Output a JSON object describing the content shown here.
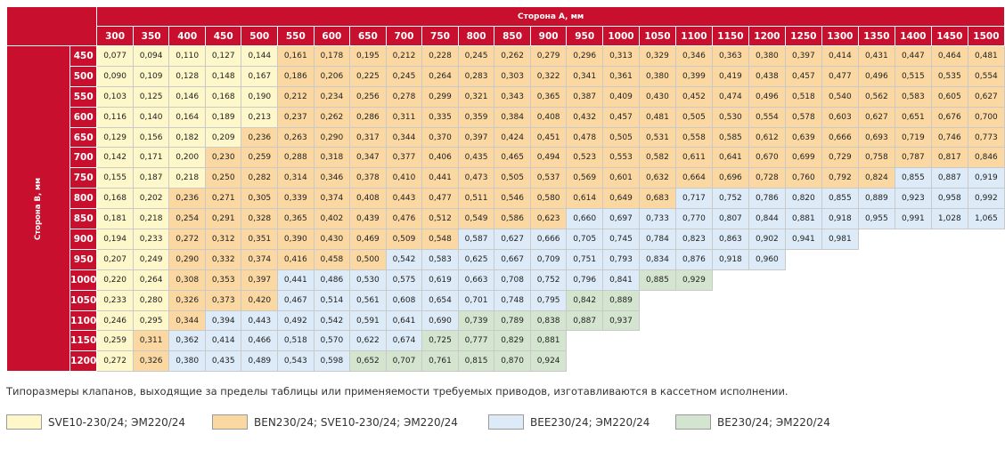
{
  "title_a": "Сторона А, мм",
  "title_b": "Сторона В, мм",
  "columns": [
    "300",
    "350",
    "400",
    "450",
    "500",
    "550",
    "600",
    "650",
    "700",
    "750",
    "800",
    "850",
    "900",
    "950",
    "1000",
    "1050",
    "1100",
    "1150",
    "1200",
    "1250",
    "1300",
    "1350",
    "1400",
    "1450",
    "1500"
  ],
  "rows": [
    {
      "label": "450",
      "values": [
        "0,077",
        "0,094",
        "0,110",
        "0,127",
        "0,144",
        "0,161",
        "0,178",
        "0,195",
        "0,212",
        "0,228",
        "0,245",
        "0,262",
        "0,279",
        "0,296",
        "0,313",
        "0,329",
        "0,346",
        "0,363",
        "0,380",
        "0,397",
        "0,414",
        "0,431",
        "0,447",
        "0,464",
        "0,481"
      ],
      "cls": "1111122222222222222222222"
    },
    {
      "label": "500",
      "values": [
        "0,090",
        "0,109",
        "0,128",
        "0,148",
        "0,167",
        "0,186",
        "0,206",
        "0,225",
        "0,245",
        "0,264",
        "0,283",
        "0,303",
        "0,322",
        "0,341",
        "0,361",
        "0,380",
        "0,399",
        "0,419",
        "0,438",
        "0,457",
        "0,477",
        "0,496",
        "0,515",
        "0,535",
        "0,554"
      ],
      "cls": "1111122222222222222222222"
    },
    {
      "label": "550",
      "values": [
        "0,103",
        "0,125",
        "0,146",
        "0,168",
        "0,190",
        "0,212",
        "0,234",
        "0,256",
        "0,278",
        "0,299",
        "0,321",
        "0,343",
        "0,365",
        "0,387",
        "0,409",
        "0,430",
        "0,452",
        "0,474",
        "0,496",
        "0,518",
        "0,540",
        "0,562",
        "0,583",
        "0,605",
        "0,627"
      ],
      "cls": "1111122222222222222222222"
    },
    {
      "label": "600",
      "values": [
        "0,116",
        "0,140",
        "0,164",
        "0,189",
        "0,213",
        "0,237",
        "0,262",
        "0,286",
        "0,311",
        "0,335",
        "0,359",
        "0,384",
        "0,408",
        "0,432",
        "0,457",
        "0,481",
        "0,505",
        "0,530",
        "0,554",
        "0,578",
        "0,603",
        "0,627",
        "0,651",
        "0,676",
        "0,700"
      ],
      "cls": "1111122222222222222222222"
    },
    {
      "label": "650",
      "values": [
        "0,129",
        "0,156",
        "0,182",
        "0,209",
        "0,236",
        "0,263",
        "0,290",
        "0,317",
        "0,344",
        "0,370",
        "0,397",
        "0,424",
        "0,451",
        "0,478",
        "0,505",
        "0,531",
        "0,558",
        "0,585",
        "0,612",
        "0,639",
        "0,666",
        "0,693",
        "0,719",
        "0,746",
        "0,773"
      ],
      "cls": "1111222222222222222222222"
    },
    {
      "label": "700",
      "values": [
        "0,142",
        "0,171",
        "0,200",
        "0,230",
        "0,259",
        "0,288",
        "0,318",
        "0,347",
        "0,377",
        "0,406",
        "0,435",
        "0,465",
        "0,494",
        "0,523",
        "0,553",
        "0,582",
        "0,611",
        "0,641",
        "0,670",
        "0,699",
        "0,729",
        "0,758",
        "0,787",
        "0,817",
        "0,846"
      ],
      "cls": "1112222222222222222222222"
    },
    {
      "label": "750",
      "values": [
        "0,155",
        "0,187",
        "0,218",
        "0,250",
        "0,282",
        "0,314",
        "0,346",
        "0,378",
        "0,410",
        "0,441",
        "0,473",
        "0,505",
        "0,537",
        "0,569",
        "0,601",
        "0,632",
        "0,664",
        "0,696",
        "0,728",
        "0,760",
        "0,792",
        "0,824",
        "0,855",
        "0,887",
        "0,919"
      ],
      "cls": "1112222222222222222222333"
    },
    {
      "label": "800",
      "values": [
        "0,168",
        "0,202",
        "0,236",
        "0,271",
        "0,305",
        "0,339",
        "0,374",
        "0,408",
        "0,443",
        "0,477",
        "0,511",
        "0,546",
        "0,580",
        "0,614",
        "0,649",
        "0,683",
        "0,717",
        "0,752",
        "0,786",
        "0,820",
        "0,855",
        "0,889",
        "0,923",
        "0,958",
        "0,992"
      ],
      "cls": "1122222222222222333333333"
    },
    {
      "label": "850",
      "values": [
        "0,181",
        "0,218",
        "0,254",
        "0,291",
        "0,328",
        "0,365",
        "0,402",
        "0,439",
        "0,476",
        "0,512",
        "0,549",
        "0,586",
        "0,623",
        "0,660",
        "0,697",
        "0,733",
        "0,770",
        "0,807",
        "0,844",
        "0,881",
        "0,918",
        "0,955",
        "0,991",
        "1,028",
        "1,065"
      ],
      "cls": "1122222222222333333333333"
    },
    {
      "label": "900",
      "values": [
        "0,194",
        "0,233",
        "0,272",
        "0,312",
        "0,351",
        "0,390",
        "0,430",
        "0,469",
        "0,509",
        "0,548",
        "0,587",
        "0,627",
        "0,666",
        "0,705",
        "0,745",
        "0,784",
        "0,823",
        "0,863",
        "0,902",
        "0,941",
        "0,981"
      ],
      "cls": "112222222233333333333"
    },
    {
      "label": "950",
      "values": [
        "0,207",
        "0,249",
        "0,290",
        "0,332",
        "0,374",
        "0,416",
        "0,458",
        "0,500",
        "0,542",
        "0,583",
        "0,625",
        "0,667",
        "0,709",
        "0,751",
        "0,793",
        "0,834",
        "0,876",
        "0,918",
        "0,960"
      ],
      "cls": "1122222233333333333"
    },
    {
      "label": "1000",
      "values": [
        "0,220",
        "0,264",
        "0,308",
        "0,353",
        "0,397",
        "0,441",
        "0,486",
        "0,530",
        "0,575",
        "0,619",
        "0,663",
        "0,708",
        "0,752",
        "0,796",
        "0,841",
        "0,885",
        "0,929"
      ],
      "cls": "11222333333333344"
    },
    {
      "label": "1050",
      "values": [
        "0,233",
        "0,280",
        "0,326",
        "0,373",
        "0,420",
        "0,467",
        "0,514",
        "0,561",
        "0,608",
        "0,654",
        "0,701",
        "0,748",
        "0,795",
        "0,842",
        "0,889"
      ],
      "cls": "112223333333344"
    },
    {
      "label": "1100",
      "values": [
        "0,246",
        "0,295",
        "0,344",
        "0,394",
        "0,443",
        "0,492",
        "0,542",
        "0,591",
        "0,641",
        "0,690",
        "0,739",
        "0,789",
        "0,838",
        "0,887",
        "0,937"
      ],
      "cls": "112333333344444"
    },
    {
      "label": "1150",
      "values": [
        "0,259",
        "0,311",
        "0,362",
        "0,414",
        "0,466",
        "0,518",
        "0,570",
        "0,622",
        "0,674",
        "0,725",
        "0,777",
        "0,829",
        "0,881"
      ],
      "cls": "1233333334444"
    },
    {
      "label": "1200",
      "values": [
        "0,272",
        "0,326",
        "0,380",
        "0,435",
        "0,489",
        "0,543",
        "0,598",
        "0,652",
        "0,707",
        "0,761",
        "0,815",
        "0,870",
        "0,924"
      ],
      "cls": "1233333444444"
    }
  ],
  "note": "Типоразмеры клапанов, выходящие за пределы таблицы или применяемости требуемых приводов, изготавливаются в кассетном исполнении.",
  "legend": [
    {
      "label": "SVE10-230/24; ЭМ220/24",
      "color": "#fdf7c9"
    },
    {
      "label": "BEN230/24; SVE10-230/24; ЭМ220/24",
      "color": "#fbd8a2"
    },
    {
      "label": "BEE230/24; ЭМ220/24",
      "color": "#dcebf7"
    },
    {
      "label": "BE230/24; ЭМ220/24",
      "color": "#d3e5cf"
    }
  ]
}
